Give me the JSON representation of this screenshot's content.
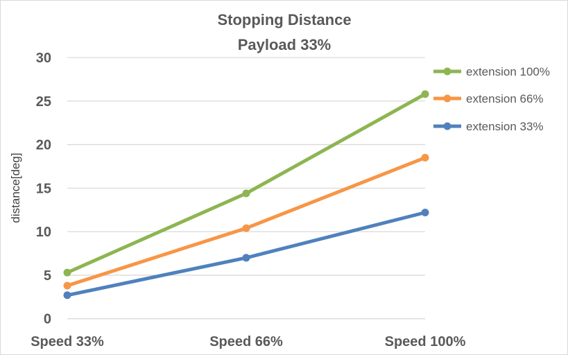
{
  "chart_data": {
    "type": "line",
    "title": "Stopping Distance",
    "subtitle": "Payload 33%",
    "xlabel": "",
    "ylabel": "distance[deg]",
    "categories": [
      "Speed 33%",
      "Speed 66%",
      "Speed 100%"
    ],
    "ylim": [
      0,
      30
    ],
    "yticks": [
      "0",
      "5",
      "10",
      "15",
      "20",
      "25",
      "30"
    ],
    "grid": true,
    "legend_position": "right",
    "series": [
      {
        "name": "extension 100%",
        "values": [
          5.3,
          14.4,
          25.8
        ],
        "color": "#8DB551"
      },
      {
        "name": "extension 66%",
        "values": [
          3.8,
          10.4,
          18.5
        ],
        "color": "#F79646"
      },
      {
        "name": "extension 33%",
        "values": [
          2.7,
          7.0,
          12.2
        ],
        "color": "#4F81BD"
      }
    ]
  }
}
